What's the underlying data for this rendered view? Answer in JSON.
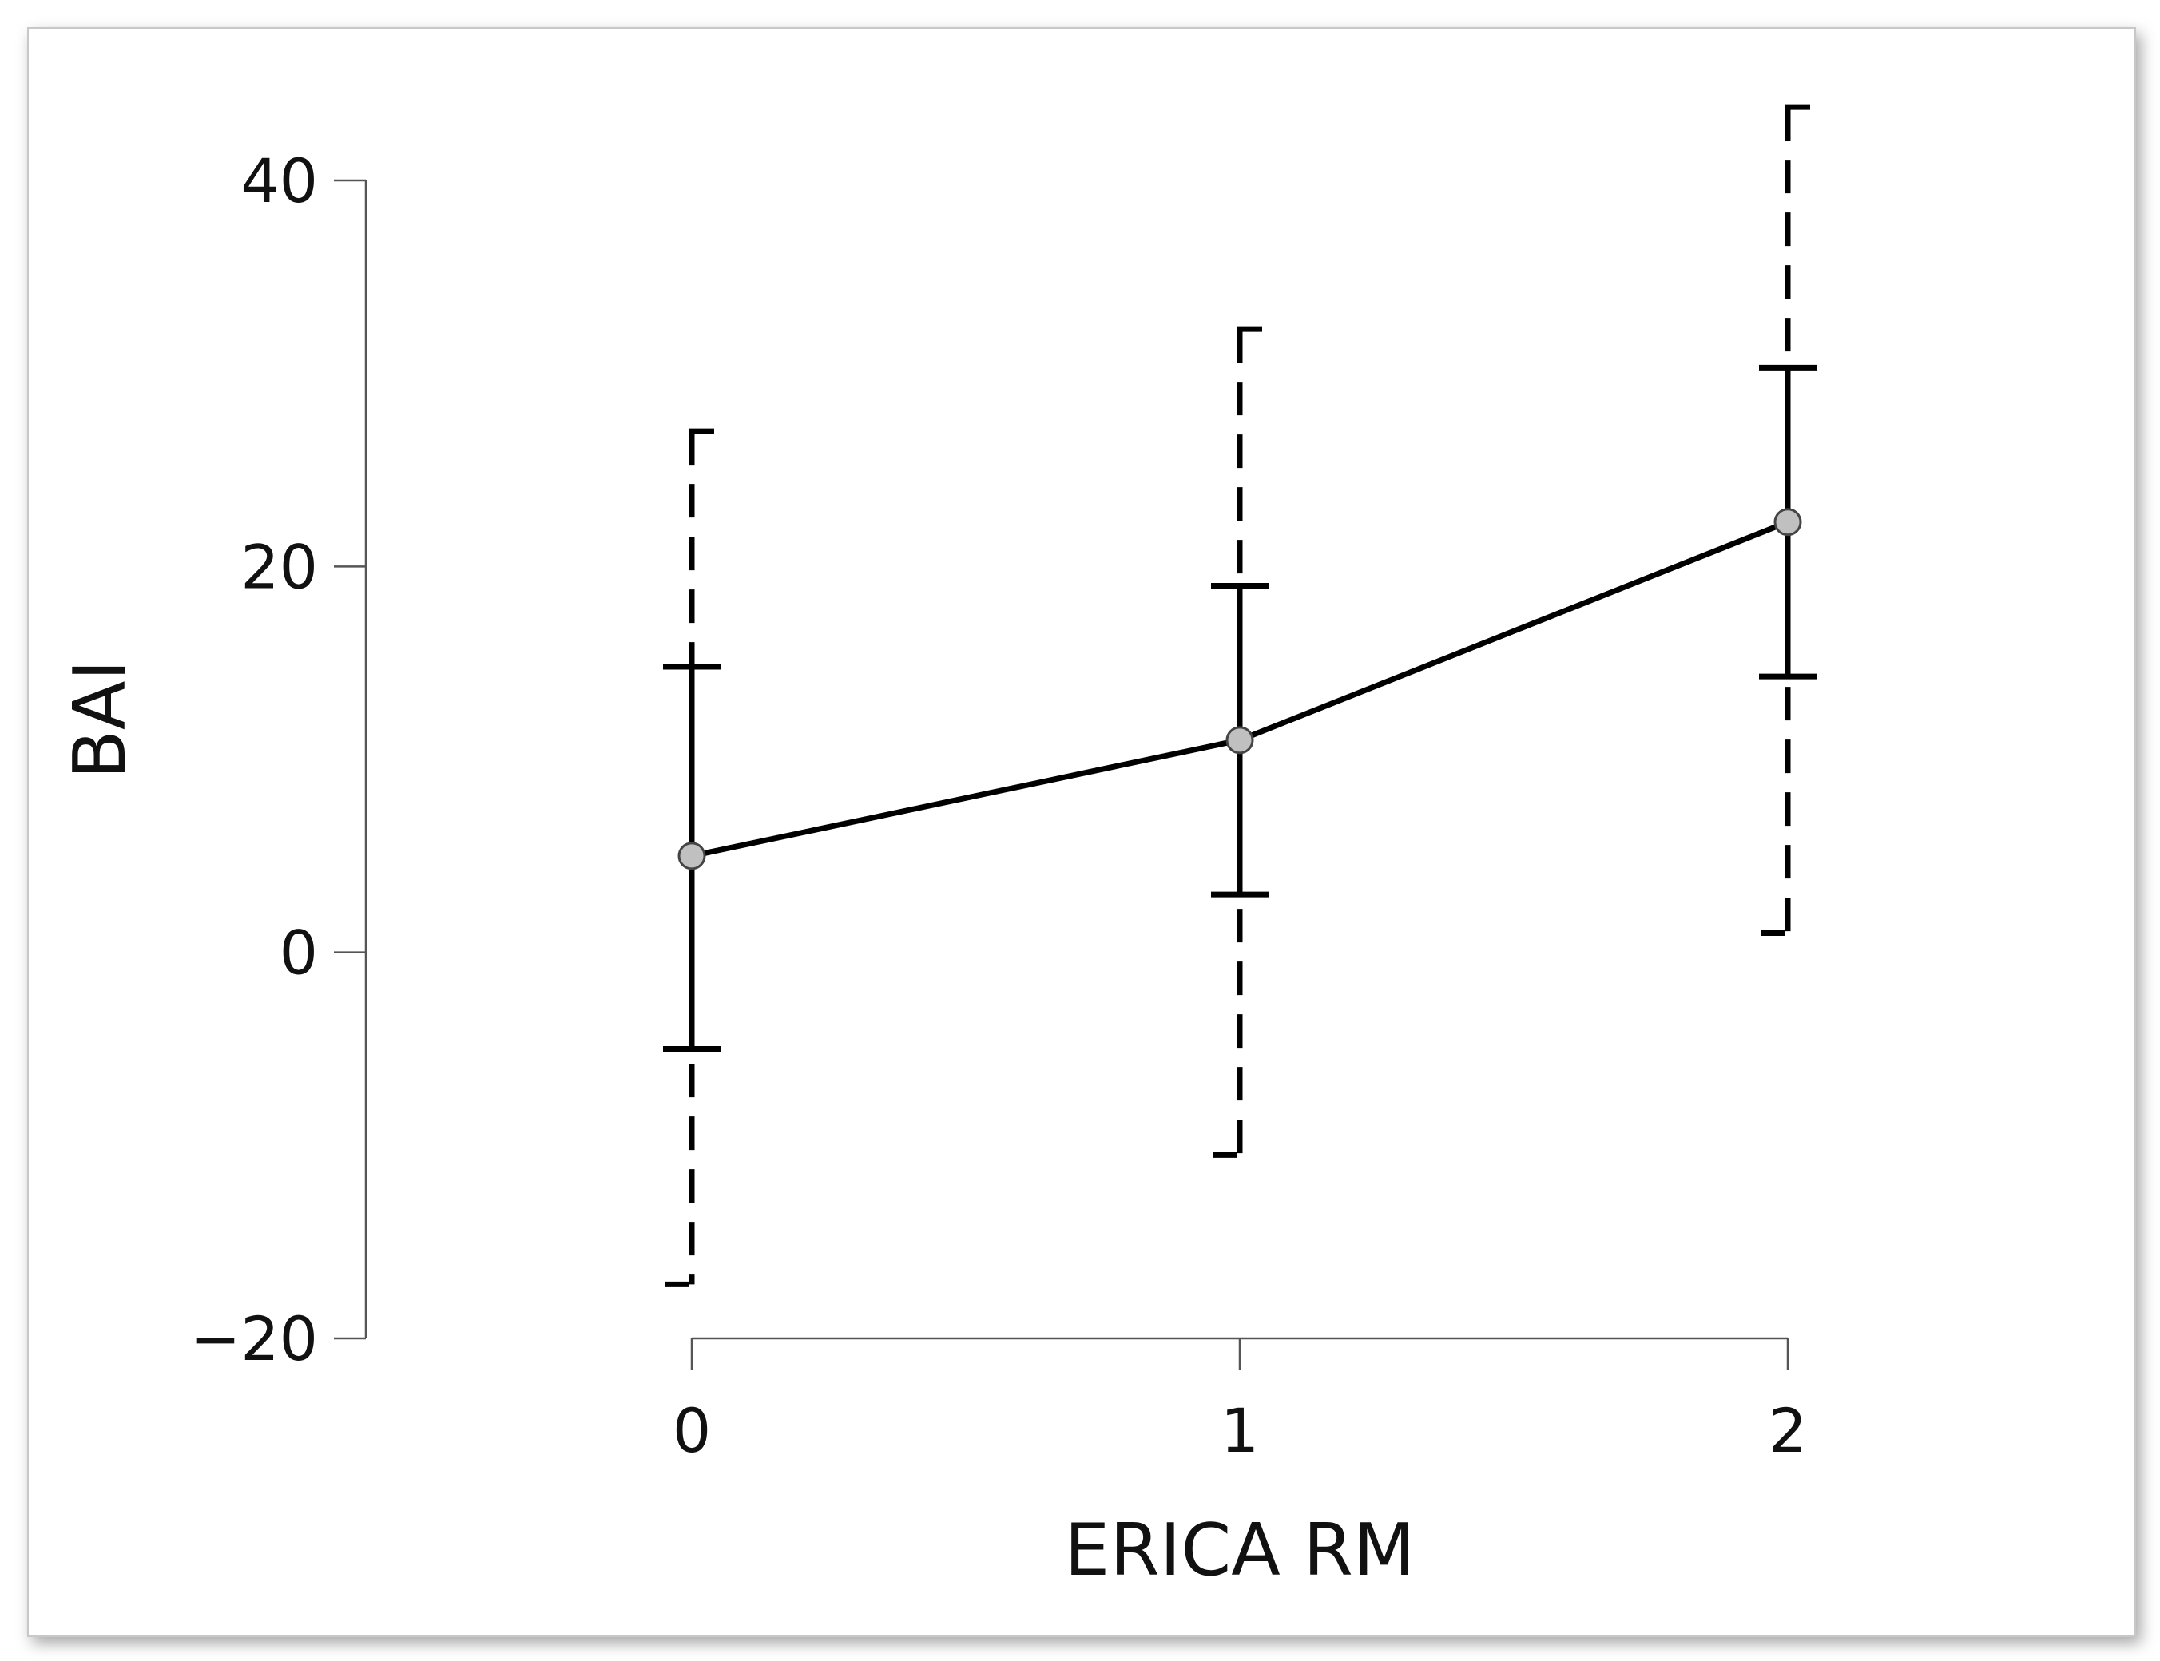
{
  "chart_data": {
    "type": "line",
    "title": "",
    "xlabel": "ERICA RM",
    "ylabel": "BAI",
    "x": [
      0,
      1,
      2
    ],
    "x_tick_labels": [
      "0",
      "1",
      "2"
    ],
    "y_tick_values": [
      -20,
      0,
      20,
      40
    ],
    "y_tick_labels": [
      "−20",
      "0",
      "20",
      "40"
    ],
    "ylim": [
      -20,
      40
    ],
    "xlim": [
      0,
      2
    ],
    "grid": false,
    "legend": "none",
    "series": [
      {
        "points": [
          5.0,
          11.0,
          22.3
        ],
        "inner_interval": {
          "style": "solid",
          "lower": [
            -5.0,
            3.0,
            14.3
          ],
          "upper": [
            14.8,
            19.0,
            30.3
          ]
        },
        "outer_interval": {
          "style": "dashed",
          "lower": [
            -17.2,
            -10.5,
            1.0
          ],
          "upper": [
            27.0,
            32.3,
            43.8
          ]
        }
      }
    ],
    "colors": {
      "line": "#000000",
      "marker_fill": "#c0c0c0",
      "axis": "#555555"
    }
  }
}
